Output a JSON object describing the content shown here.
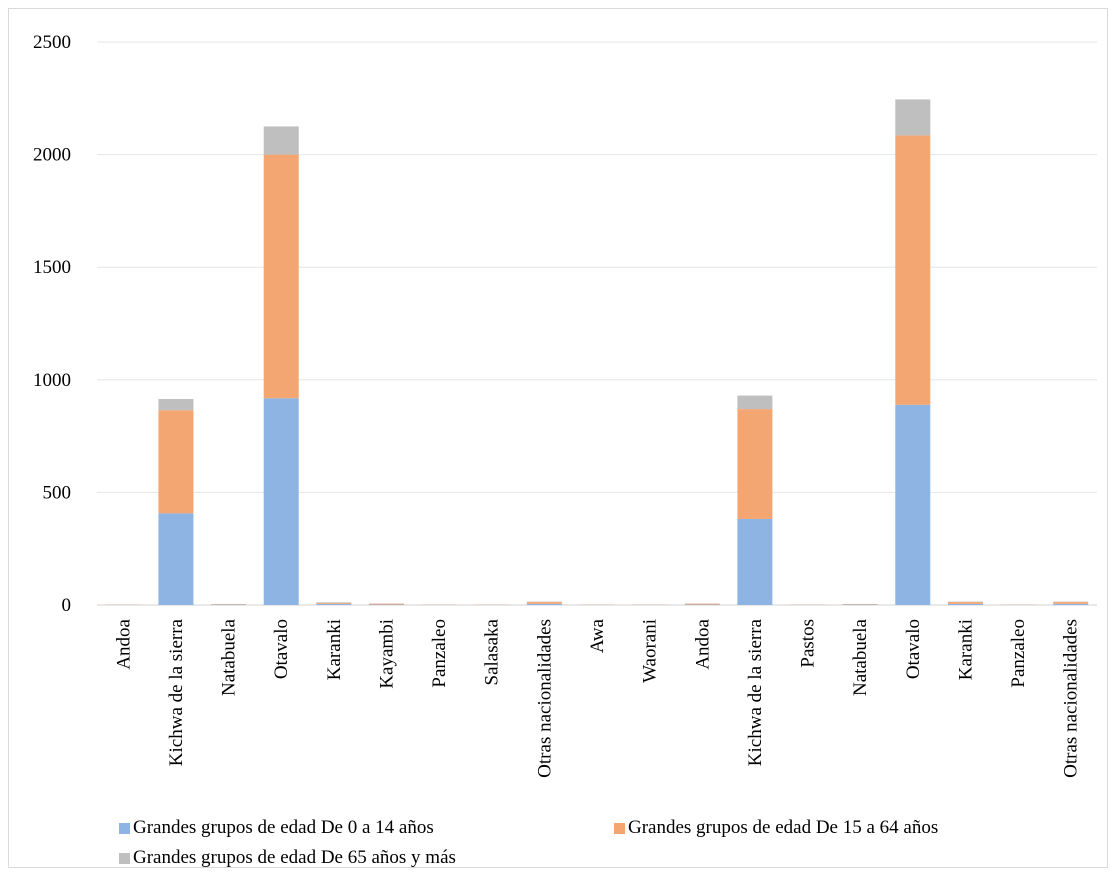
{
  "chart_data": {
    "type": "bar",
    "stacked": true,
    "categories": [
      "Andoa",
      "Kichwa de la sierra",
      "Natabuela",
      "Otavalo",
      "Karanki",
      "Kayambi",
      "Panzaleo",
      "Salasaka",
      "Otras nacionalidades",
      "Awa",
      "Waorani",
      "Andoa",
      "Kichwa de la sierra",
      "Pastos",
      "Natabuela",
      "Otavalo",
      "Karanki",
      "Panzaleo",
      "Otras nacionalidades"
    ],
    "series": [
      {
        "name": "Grandes grupos de edad De 0 a 14 años",
        "color": "#8db4e2",
        "values": [
          1,
          407,
          2,
          918,
          5,
          2,
          1,
          1,
          5,
          1,
          1,
          2,
          382,
          1,
          2,
          889,
          5,
          1,
          5
        ]
      },
      {
        "name": "Grandes grupos de edad De 15 a 64 años",
        "color": "#f4a672",
        "values": [
          1,
          458,
          2,
          1082,
          4,
          4,
          1,
          1,
          8,
          1,
          1,
          4,
          488,
          1,
          2,
          1196,
          8,
          1,
          8
        ]
      },
      {
        "name": "Grandes grupos de edad De 65 años y más",
        "color": "#bfbfbf",
        "values": [
          0,
          50,
          0,
          125,
          3,
          1,
          0,
          0,
          2,
          0,
          0,
          1,
          60,
          0,
          0,
          160,
          2,
          0,
          2
        ]
      }
    ],
    "ylim": [
      0,
      2500
    ],
    "yticks": [
      0,
      500,
      1000,
      1500,
      2000,
      2500
    ],
    "grid": true,
    "legend_position": "bottom",
    "title": "",
    "xlabel": "",
    "ylabel": ""
  }
}
